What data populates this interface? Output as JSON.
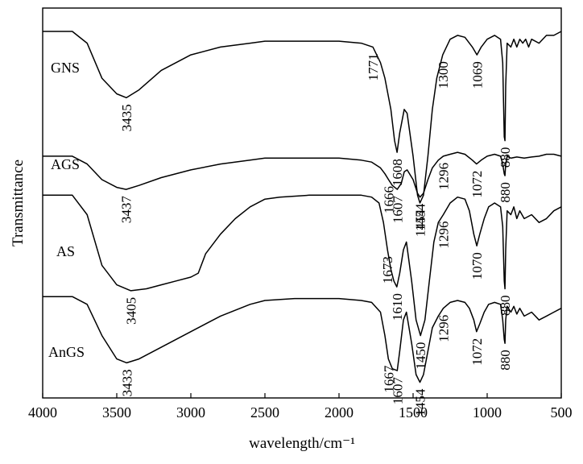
{
  "chart_data": {
    "type": "line",
    "title": "",
    "xlabel": "wavelength/cm⁻¹",
    "ylabel": "Transmittance",
    "xlim": [
      4000,
      500
    ],
    "x_ticks": [
      4000,
      3500,
      3000,
      2500,
      2000,
      1500,
      1000,
      500
    ],
    "x_tick_labels": [
      "4000",
      "3500",
      "3000",
      "2500",
      "2000",
      "1500",
      "1000",
      "500"
    ],
    "y_ticks_shown": false,
    "grid": false,
    "legend": "none (series names printed beside curves)",
    "series": [
      {
        "name": "GNS",
        "peaks": [
          {
            "x": 3435,
            "label": "3435"
          },
          {
            "x": 1771,
            "label": "1771"
          },
          {
            "x": 1608,
            "label": "1608"
          },
          {
            "x": 1454,
            "label": "1454"
          },
          {
            "x": 1300,
            "label": "1300"
          },
          {
            "x": 1069,
            "label": "1069"
          },
          {
            "x": 880,
            "label": "880"
          }
        ],
        "points": [
          [
            4000,
            0.94
          ],
          [
            3800,
            0.94
          ],
          [
            3700,
            0.91
          ],
          [
            3600,
            0.82
          ],
          [
            3500,
            0.78
          ],
          [
            3435,
            0.77
          ],
          [
            3350,
            0.79
          ],
          [
            3200,
            0.84
          ],
          [
            3000,
            0.88
          ],
          [
            2800,
            0.9
          ],
          [
            2600,
            0.91
          ],
          [
            2500,
            0.915
          ],
          [
            2300,
            0.915
          ],
          [
            2000,
            0.915
          ],
          [
            1850,
            0.91
          ],
          [
            1771,
            0.9
          ],
          [
            1720,
            0.86
          ],
          [
            1690,
            0.82
          ],
          [
            1650,
            0.74
          ],
          [
            1625,
            0.66
          ],
          [
            1608,
            0.63
          ],
          [
            1590,
            0.68
          ],
          [
            1560,
            0.74
          ],
          [
            1540,
            0.73
          ],
          [
            1500,
            0.62
          ],
          [
            1470,
            0.52
          ],
          [
            1454,
            0.5
          ],
          [
            1430,
            0.52
          ],
          [
            1400,
            0.62
          ],
          [
            1370,
            0.74
          ],
          [
            1340,
            0.82
          ],
          [
            1300,
            0.88
          ],
          [
            1250,
            0.92
          ],
          [
            1200,
            0.93
          ],
          [
            1150,
            0.925
          ],
          [
            1100,
            0.9
          ],
          [
            1069,
            0.88
          ],
          [
            1040,
            0.9
          ],
          [
            1000,
            0.92
          ],
          [
            950,
            0.93
          ],
          [
            910,
            0.92
          ],
          [
            895,
            0.86
          ],
          [
            885,
            0.67
          ],
          [
            880,
            0.66
          ],
          [
            875,
            0.8
          ],
          [
            865,
            0.91
          ],
          [
            840,
            0.9
          ],
          [
            820,
            0.92
          ],
          [
            800,
            0.9
          ],
          [
            780,
            0.92
          ],
          [
            760,
            0.91
          ],
          [
            740,
            0.92
          ],
          [
            720,
            0.9
          ],
          [
            700,
            0.92
          ],
          [
            650,
            0.91
          ],
          [
            600,
            0.93
          ],
          [
            550,
            0.93
          ],
          [
            500,
            0.94
          ]
        ]
      },
      {
        "name": "AGS",
        "peaks": [
          {
            "x": 3437,
            "label": "3437"
          },
          {
            "x": 1666,
            "label": "1666"
          },
          {
            "x": 1607,
            "label": "1607"
          },
          {
            "x": 1454,
            "label": "1454"
          },
          {
            "x": 1296,
            "label": "1296"
          },
          {
            "x": 1072,
            "label": "1072"
          },
          {
            "x": 880,
            "label": "880"
          }
        ],
        "points": [
          [
            4000,
            0.62
          ],
          [
            3800,
            0.62
          ],
          [
            3700,
            0.6
          ],
          [
            3600,
            0.56
          ],
          [
            3500,
            0.54
          ],
          [
            3437,
            0.535
          ],
          [
            3350,
            0.545
          ],
          [
            3200,
            0.565
          ],
          [
            3000,
            0.585
          ],
          [
            2800,
            0.6
          ],
          [
            2600,
            0.61
          ],
          [
            2500,
            0.615
          ],
          [
            2300,
            0.615
          ],
          [
            2000,
            0.615
          ],
          [
            1850,
            0.61
          ],
          [
            1780,
            0.605
          ],
          [
            1720,
            0.59
          ],
          [
            1690,
            0.575
          ],
          [
            1666,
            0.56
          ],
          [
            1640,
            0.545
          ],
          [
            1607,
            0.535
          ],
          [
            1580,
            0.55
          ],
          [
            1560,
            0.58
          ],
          [
            1540,
            0.585
          ],
          [
            1500,
            0.56
          ],
          [
            1470,
            0.525
          ],
          [
            1454,
            0.515
          ],
          [
            1430,
            0.525
          ],
          [
            1400,
            0.56
          ],
          [
            1370,
            0.59
          ],
          [
            1330,
            0.61
          ],
          [
            1296,
            0.62
          ],
          [
            1250,
            0.625
          ],
          [
            1200,
            0.63
          ],
          [
            1150,
            0.625
          ],
          [
            1100,
            0.61
          ],
          [
            1072,
            0.6
          ],
          [
            1040,
            0.61
          ],
          [
            1000,
            0.62
          ],
          [
            950,
            0.625
          ],
          [
            910,
            0.62
          ],
          [
            895,
            0.6
          ],
          [
            885,
            0.575
          ],
          [
            880,
            0.57
          ],
          [
            875,
            0.6
          ],
          [
            865,
            0.62
          ],
          [
            840,
            0.615
          ],
          [
            800,
            0.618
          ],
          [
            750,
            0.615
          ],
          [
            700,
            0.618
          ],
          [
            650,
            0.62
          ],
          [
            600,
            0.625
          ],
          [
            550,
            0.625
          ],
          [
            500,
            0.62
          ]
        ]
      },
      {
        "name": "AS",
        "peaks": [
          {
            "x": 3405,
            "label": "3405"
          },
          {
            "x": 1673,
            "label": "1673"
          },
          {
            "x": 1610,
            "label": "1610"
          },
          {
            "x": 1450,
            "label": "1450"
          },
          {
            "x": 1296,
            "label": "1296"
          },
          {
            "x": 1070,
            "label": "1070"
          },
          {
            "x": 880,
            "label": "880"
          }
        ],
        "points": [
          [
            4000,
            0.52
          ],
          [
            3800,
            0.52
          ],
          [
            3700,
            0.47
          ],
          [
            3600,
            0.34
          ],
          [
            3500,
            0.29
          ],
          [
            3405,
            0.275
          ],
          [
            3300,
            0.28
          ],
          [
            3200,
            0.29
          ],
          [
            3100,
            0.3
          ],
          [
            3000,
            0.31
          ],
          [
            2950,
            0.32
          ],
          [
            2900,
            0.37
          ],
          [
            2800,
            0.42
          ],
          [
            2700,
            0.46
          ],
          [
            2600,
            0.49
          ],
          [
            2500,
            0.51
          ],
          [
            2400,
            0.515
          ],
          [
            2200,
            0.52
          ],
          [
            2000,
            0.52
          ],
          [
            1850,
            0.52
          ],
          [
            1780,
            0.515
          ],
          [
            1730,
            0.5
          ],
          [
            1700,
            0.45
          ],
          [
            1673,
            0.38
          ],
          [
            1650,
            0.33
          ],
          [
            1630,
            0.3
          ],
          [
            1610,
            0.285
          ],
          [
            1590,
            0.32
          ],
          [
            1565,
            0.38
          ],
          [
            1545,
            0.4
          ],
          [
            1510,
            0.3
          ],
          [
            1480,
            0.2
          ],
          [
            1450,
            0.16
          ],
          [
            1420,
            0.2
          ],
          [
            1390,
            0.3
          ],
          [
            1360,
            0.4
          ],
          [
            1330,
            0.45
          ],
          [
            1296,
            0.47
          ],
          [
            1250,
            0.5
          ],
          [
            1200,
            0.515
          ],
          [
            1150,
            0.51
          ],
          [
            1120,
            0.48
          ],
          [
            1090,
            0.42
          ],
          [
            1070,
            0.39
          ],
          [
            1050,
            0.42
          ],
          [
            1020,
            0.46
          ],
          [
            990,
            0.49
          ],
          [
            950,
            0.5
          ],
          [
            910,
            0.49
          ],
          [
            895,
            0.44
          ],
          [
            885,
            0.3
          ],
          [
            880,
            0.28
          ],
          [
            875,
            0.38
          ],
          [
            865,
            0.48
          ],
          [
            840,
            0.47
          ],
          [
            820,
            0.49
          ],
          [
            800,
            0.46
          ],
          [
            780,
            0.48
          ],
          [
            750,
            0.46
          ],
          [
            700,
            0.47
          ],
          [
            650,
            0.45
          ],
          [
            600,
            0.46
          ],
          [
            550,
            0.48
          ],
          [
            500,
            0.49
          ]
        ]
      },
      {
        "name": "AnGS",
        "peaks": [
          {
            "x": 3433,
            "label": "3433"
          },
          {
            "x": 1667,
            "label": "1667"
          },
          {
            "x": 1607,
            "label": "1607"
          },
          {
            "x": 1454,
            "label": "1454"
          },
          {
            "x": 1296,
            "label": "1296"
          },
          {
            "x": 1072,
            "label": "1072"
          },
          {
            "x": 880,
            "label": "880"
          }
        ],
        "points": [
          [
            4000,
            0.26
          ],
          [
            3800,
            0.26
          ],
          [
            3700,
            0.24
          ],
          [
            3600,
            0.16
          ],
          [
            3500,
            0.1
          ],
          [
            3433,
            0.09
          ],
          [
            3350,
            0.1
          ],
          [
            3200,
            0.13
          ],
          [
            3000,
            0.17
          ],
          [
            2800,
            0.21
          ],
          [
            2600,
            0.24
          ],
          [
            2500,
            0.25
          ],
          [
            2300,
            0.255
          ],
          [
            2000,
            0.255
          ],
          [
            1850,
            0.25
          ],
          [
            1780,
            0.245
          ],
          [
            1720,
            0.22
          ],
          [
            1690,
            0.16
          ],
          [
            1667,
            0.1
          ],
          [
            1640,
            0.075
          ],
          [
            1607,
            0.07
          ],
          [
            1590,
            0.12
          ],
          [
            1565,
            0.2
          ],
          [
            1545,
            0.22
          ],
          [
            1510,
            0.14
          ],
          [
            1480,
            0.06
          ],
          [
            1454,
            0.04
          ],
          [
            1430,
            0.06
          ],
          [
            1400,
            0.12
          ],
          [
            1370,
            0.18
          ],
          [
            1330,
            0.21
          ],
          [
            1296,
            0.23
          ],
          [
            1250,
            0.245
          ],
          [
            1200,
            0.25
          ],
          [
            1150,
            0.245
          ],
          [
            1120,
            0.23
          ],
          [
            1090,
            0.2
          ],
          [
            1072,
            0.17
          ],
          [
            1050,
            0.19
          ],
          [
            1020,
            0.22
          ],
          [
            990,
            0.24
          ],
          [
            950,
            0.245
          ],
          [
            910,
            0.24
          ],
          [
            895,
            0.2
          ],
          [
            885,
            0.15
          ],
          [
            880,
            0.14
          ],
          [
            875,
            0.2
          ],
          [
            865,
            0.235
          ],
          [
            840,
            0.22
          ],
          [
            820,
            0.235
          ],
          [
            800,
            0.215
          ],
          [
            780,
            0.23
          ],
          [
            750,
            0.21
          ],
          [
            700,
            0.22
          ],
          [
            650,
            0.2
          ],
          [
            600,
            0.21
          ],
          [
            550,
            0.22
          ],
          [
            500,
            0.23
          ]
        ]
      }
    ]
  }
}
